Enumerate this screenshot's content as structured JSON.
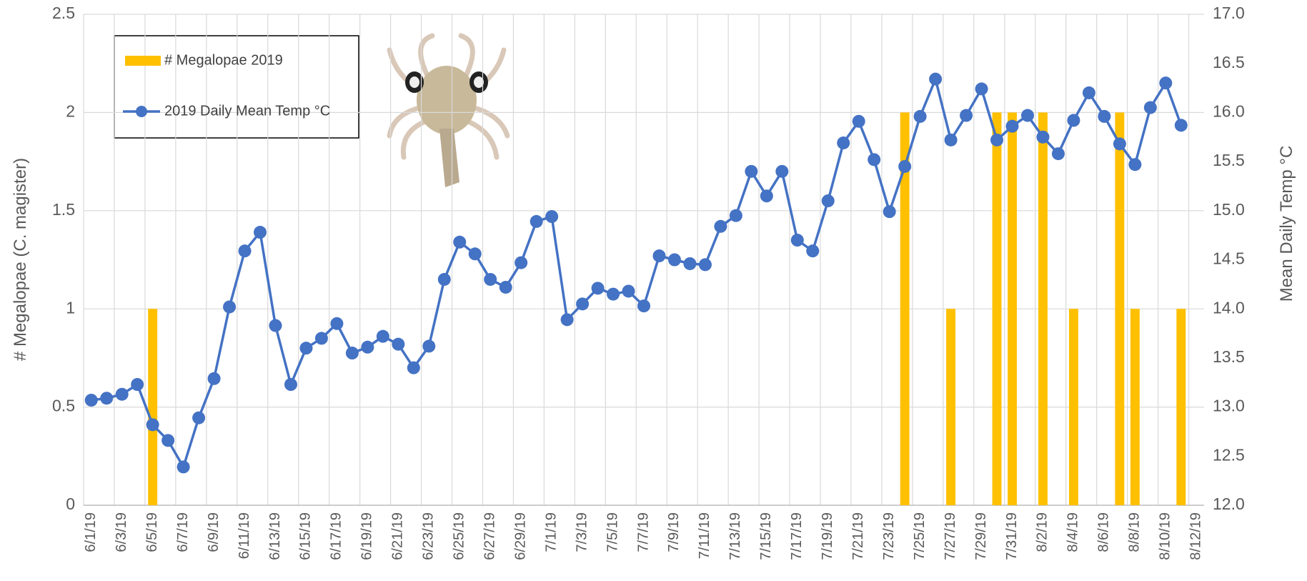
{
  "chart_data": {
    "type": "bar_line",
    "ylabel": "# Megalopae (C. magister)",
    "y2label": "Mean Daily Temp °C",
    "categories": [
      "6/1/19",
      null,
      "6/3/19",
      null,
      "6/5/19",
      null,
      "6/7/19",
      null,
      "6/9/19",
      null,
      "6/11/19",
      null,
      "6/13/19",
      null,
      "6/15/19",
      null,
      "6/17/19",
      null,
      "6/19/19",
      null,
      "6/21/19",
      null,
      "6/23/19",
      null,
      "6/25/19",
      null,
      "6/27/19",
      null,
      "6/29/19",
      null,
      "7/1/19",
      null,
      "7/3/19",
      null,
      "7/5/19",
      null,
      "7/7/19",
      null,
      "7/9/19",
      null,
      "7/11/19",
      null,
      "7/13/19",
      null,
      "7/15/19",
      null,
      "7/17/19",
      null,
      "7/19/19",
      null,
      "7/21/19",
      null,
      "7/23/19",
      null,
      "7/25/19",
      null,
      "7/27/19",
      null,
      "7/29/19",
      null,
      "7/31/19",
      null,
      "8/2/19",
      null,
      "8/4/19",
      null,
      "8/6/19",
      null,
      "8/8/19",
      null,
      "8/10/19",
      null,
      "8/12/19"
    ],
    "series": [
      {
        "name": "# Megalopae 2019",
        "type": "bar",
        "color": "#ffc000",
        "values": [
          0,
          0,
          0,
          0,
          1,
          0,
          0,
          0,
          0,
          0,
          0,
          0,
          0,
          0,
          0,
          0,
          0,
          0,
          0,
          0,
          0,
          0,
          0,
          0,
          0,
          0,
          0,
          0,
          0,
          0,
          0,
          0,
          0,
          0,
          0,
          0,
          0,
          0,
          0,
          0,
          0,
          0,
          0,
          0,
          0,
          0,
          0,
          0,
          0,
          0,
          0,
          0,
          0,
          2,
          0,
          0,
          1,
          0,
          0,
          2,
          2,
          0,
          2,
          0,
          1,
          0,
          0,
          2,
          1,
          0,
          0,
          1,
          0
        ]
      },
      {
        "name": "2019 Daily Mean Temp °C",
        "type": "line",
        "axis": "y2",
        "color": "#4472c4",
        "values": [
          13.07,
          13.09,
          13.13,
          13.23,
          12.82,
          12.66,
          12.39,
          12.89,
          13.29,
          14.02,
          14.59,
          14.78,
          13.83,
          13.23,
          13.6,
          13.7,
          13.85,
          13.55,
          13.61,
          13.72,
          13.64,
          13.4,
          13.62,
          14.3,
          14.68,
          14.56,
          14.3,
          14.22,
          14.47,
          14.89,
          14.94,
          13.89,
          14.05,
          14.21,
          14.15,
          14.18,
          14.03,
          14.54,
          14.5,
          14.46,
          14.45,
          14.84,
          14.95,
          15.4,
          15.15,
          15.4,
          14.7,
          14.59,
          15.1,
          15.69,
          15.91,
          15.52,
          14.99,
          15.45,
          15.96,
          16.34,
          15.72,
          15.97,
          16.24,
          15.72,
          15.86,
          15.97,
          15.75,
          15.58,
          15.92,
          16.2,
          15.96,
          15.68,
          15.47,
          16.05,
          16.3,
          15.87,
          null
        ]
      }
    ],
    "ylim": [
      0,
      2.5
    ],
    "yticks": [
      0,
      0.5,
      1,
      1.5,
      2,
      2.5
    ],
    "y2lim": [
      12,
      17
    ],
    "y2ticks": [
      {
        "value": 12,
        "label": "12.0"
      },
      {
        "value": 12.5,
        "label": "12.5"
      },
      {
        "value": 13,
        "label": "13.0"
      },
      {
        "value": 13.5,
        "label": "13.5"
      },
      {
        "value": 14,
        "label": "14.0"
      },
      {
        "value": 14.5,
        "label": "14.5"
      },
      {
        "value": 15,
        "label": "15.0"
      },
      {
        "value": 15.5,
        "label": "15.5"
      },
      {
        "value": 16,
        "label": "16.0"
      },
      {
        "value": 16.5,
        "label": "16.5"
      },
      {
        "value": 17,
        "label": "17.0"
      }
    ],
    "grid": true,
    "legend": "upper left"
  }
}
